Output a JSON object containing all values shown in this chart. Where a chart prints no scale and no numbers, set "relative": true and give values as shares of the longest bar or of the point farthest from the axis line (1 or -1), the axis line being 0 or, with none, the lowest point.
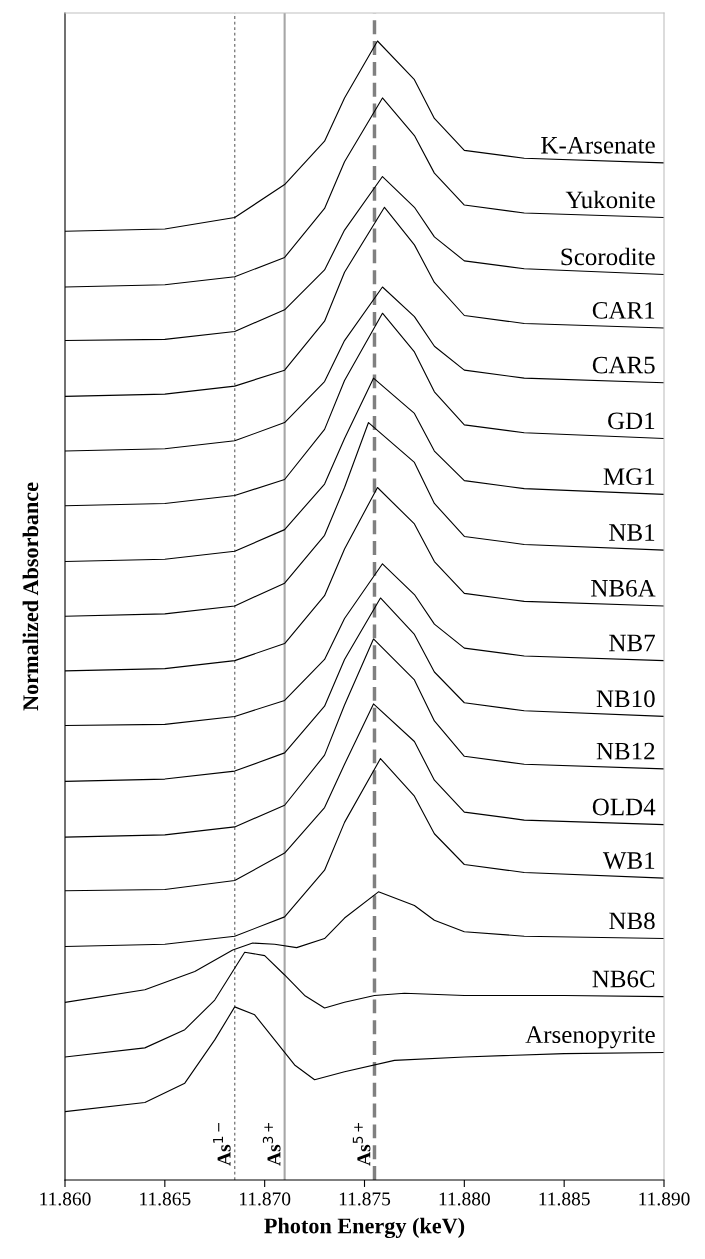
{
  "chart_data": {
    "type": "line",
    "relative": true,
    "xlabel": "Photon Energy (keV)",
    "ylabel": "Normalized Absorbance",
    "xlim": [
      11.86,
      11.89
    ],
    "xticks": [
      {
        "value": 11.86,
        "label": "11.860"
      },
      {
        "value": 11.865,
        "label": "11.865"
      },
      {
        "value": 11.87,
        "label": "11.870"
      },
      {
        "value": 11.875,
        "label": "11.875"
      },
      {
        "value": 11.88,
        "label": "11.880"
      },
      {
        "value": 11.885,
        "label": "11.885"
      },
      {
        "value": 11.89,
        "label": "11.890"
      }
    ],
    "tick_labels": "x",
    "grid": false,
    "legend": false,
    "marker": "none",
    "line_style": "solid",
    "ref_lines": [
      {
        "axis": "x",
        "value": 11.8685,
        "label": "As$^{1−}$",
        "color": "#808080",
        "line_style": "dotted"
      },
      {
        "axis": "x",
        "value": 11.871,
        "label": "As$^{3+}$",
        "color": "#a6a6a6",
        "line_style": "solid"
      },
      {
        "axis": "x",
        "value": 11.8755,
        "label": "As$^{5+}$",
        "color": "#808080",
        "line_style": "dashed"
      }
    ],
    "series": [
      {
        "name": "K-Arsenate",
        "color": "#000000",
        "x": [
          11.86,
          11.865,
          11.8685,
          11.871,
          11.873,
          11.874,
          11.87565,
          11.8775,
          11.8785,
          11.88,
          11.883,
          11.89
        ],
        "values": [
          0.833,
          0.835,
          0.845,
          0.874,
          0.912,
          0.95,
          1.0,
          0.966,
          0.932,
          0.904,
          0.897,
          0.893
        ]
      },
      {
        "name": "Yukonite",
        "color": "#000000",
        "x": [
          11.86,
          11.865,
          11.8685,
          11.871,
          11.873,
          11.874,
          11.8759,
          11.8775,
          11.8785,
          11.88,
          11.883,
          11.89
        ],
        "values": [
          0.784,
          0.786,
          0.793,
          0.81,
          0.853,
          0.894,
          0.95,
          0.917,
          0.884,
          0.856,
          0.849,
          0.845
        ]
      },
      {
        "name": "Scorodite",
        "color": "#000000",
        "x": [
          11.86,
          11.865,
          11.8685,
          11.871,
          11.873,
          11.874,
          11.8759,
          11.8775,
          11.8785,
          11.88,
          11.883,
          11.89
        ],
        "values": [
          0.737,
          0.738,
          0.745,
          0.764,
          0.799,
          0.834,
          0.881,
          0.854,
          0.828,
          0.807,
          0.8,
          0.795
        ]
      },
      {
        "name": "CAR1",
        "color": "#000000",
        "x": [
          11.86,
          11.865,
          11.8685,
          11.871,
          11.873,
          11.874,
          11.876,
          11.8775,
          11.8785,
          11.88,
          11.883,
          11.89
        ],
        "values": [
          0.688,
          0.69,
          0.697,
          0.711,
          0.754,
          0.797,
          0.854,
          0.821,
          0.788,
          0.759,
          0.752,
          0.748
        ]
      },
      {
        "name": "CAR5",
        "color": "#000000",
        "x": [
          11.86,
          11.865,
          11.8685,
          11.871,
          11.873,
          11.874,
          11.8759,
          11.8775,
          11.8785,
          11.88,
          11.883,
          11.89
        ],
        "values": [
          0.64,
          0.642,
          0.649,
          0.665,
          0.701,
          0.737,
          0.784,
          0.758,
          0.732,
          0.711,
          0.704,
          0.7
        ]
      },
      {
        "name": "GD1",
        "color": "#000000",
        "x": [
          11.86,
          11.865,
          11.8685,
          11.871,
          11.873,
          11.874,
          11.8759,
          11.8775,
          11.8785,
          11.88,
          11.883,
          11.89
        ],
        "values": [
          0.592,
          0.594,
          0.601,
          0.615,
          0.659,
          0.702,
          0.761,
          0.727,
          0.692,
          0.663,
          0.656,
          0.651
        ]
      },
      {
        "name": "MG1",
        "color": "#000000",
        "x": [
          11.86,
          11.865,
          11.8685,
          11.871,
          11.873,
          11.874,
          11.87545,
          11.8775,
          11.8785,
          11.88,
          11.883,
          11.89
        ],
        "values": [
          0.543,
          0.545,
          0.552,
          0.571,
          0.611,
          0.651,
          0.704,
          0.673,
          0.64,
          0.614,
          0.607,
          0.602
        ]
      },
      {
        "name": "NB1",
        "color": "#000000",
        "x": [
          11.86,
          11.865,
          11.8685,
          11.871,
          11.873,
          11.874,
          11.8752,
          11.8775,
          11.8785,
          11.88,
          11.883,
          11.89
        ],
        "values": [
          0.495,
          0.497,
          0.504,
          0.524,
          0.566,
          0.608,
          0.665,
          0.63,
          0.594,
          0.565,
          0.558,
          0.553
        ]
      },
      {
        "name": "NB6A",
        "color": "#000000",
        "x": [
          11.86,
          11.865,
          11.8685,
          11.871,
          11.873,
          11.874,
          11.87565,
          11.8775,
          11.8785,
          11.88,
          11.883,
          11.89
        ],
        "values": [
          0.447,
          0.449,
          0.456,
          0.471,
          0.513,
          0.554,
          0.608,
          0.576,
          0.543,
          0.515,
          0.508,
          0.504
        ]
      },
      {
        "name": "NB7",
        "color": "#000000",
        "x": [
          11.86,
          11.865,
          11.8685,
          11.871,
          11.873,
          11.874,
          11.8759,
          11.8775,
          11.8785,
          11.88,
          11.883,
          11.89
        ],
        "values": [
          0.399,
          0.4,
          0.407,
          0.421,
          0.457,
          0.493,
          0.541,
          0.514,
          0.488,
          0.467,
          0.46,
          0.456
        ]
      },
      {
        "name": "NB10",
        "color": "#000000",
        "x": [
          11.86,
          11.865,
          11.8685,
          11.871,
          11.873,
          11.874,
          11.8758,
          11.8775,
          11.8785,
          11.88,
          11.883,
          11.89
        ],
        "values": [
          0.35,
          0.352,
          0.359,
          0.375,
          0.416,
          0.457,
          0.511,
          0.479,
          0.446,
          0.419,
          0.412,
          0.407
        ]
      },
      {
        "name": "NB12",
        "color": "#000000",
        "x": [
          11.86,
          11.865,
          11.8685,
          11.871,
          11.873,
          11.874,
          11.87545,
          11.8775,
          11.8785,
          11.88,
          11.883,
          11.89
        ],
        "values": [
          0.301,
          0.303,
          0.31,
          0.329,
          0.373,
          0.417,
          0.475,
          0.439,
          0.403,
          0.372,
          0.365,
          0.361
        ]
      },
      {
        "name": "OLD4",
        "color": "#000000",
        "x": [
          11.86,
          11.865,
          11.8685,
          11.871,
          11.873,
          11.874,
          11.87545,
          11.8775,
          11.8785,
          11.88,
          11.883,
          11.89
        ],
        "values": [
          0.254,
          0.255,
          0.263,
          0.287,
          0.327,
          0.365,
          0.418,
          0.385,
          0.351,
          0.323,
          0.316,
          0.312
        ]
      },
      {
        "name": "WB1",
        "color": "#000000",
        "x": [
          11.86,
          11.865,
          11.8685,
          11.871,
          11.873,
          11.874,
          11.8758,
          11.8775,
          11.8785,
          11.88,
          11.883,
          11.89
        ],
        "values": [
          0.205,
          0.207,
          0.214,
          0.231,
          0.272,
          0.314,
          0.37,
          0.337,
          0.304,
          0.277,
          0.27,
          0.265
        ]
      },
      {
        "name": "NB8",
        "color": "#000000",
        "x": [
          11.86,
          11.864,
          11.8665,
          11.8684,
          11.8694,
          11.8705,
          11.8716,
          11.873,
          11.874,
          11.8757,
          11.8775,
          11.8785,
          11.88,
          11.883,
          11.89
        ],
        "values": [
          0.156,
          0.167,
          0.183,
          0.202,
          0.208,
          0.207,
          0.204,
          0.212,
          0.23,
          0.253,
          0.241,
          0.228,
          0.218,
          0.214,
          0.212
        ]
      },
      {
        "name": "NB6C",
        "color": "#000000",
        "x": [
          11.86,
          11.864,
          11.866,
          11.8675,
          11.869,
          11.87,
          11.871,
          11.872,
          11.873,
          11.874,
          11.8755,
          11.877,
          11.88,
          11.885,
          11.89
        ],
        "values": [
          0.108,
          0.116,
          0.132,
          0.158,
          0.2,
          0.197,
          0.18,
          0.162,
          0.151,
          0.156,
          0.162,
          0.164,
          0.162,
          0.162,
          0.161
        ]
      },
      {
        "name": "Arsenopyrite",
        "color": "#000000",
        "x": [
          11.86,
          11.864,
          11.866,
          11.8675,
          11.8685,
          11.8695,
          11.8705,
          11.8715,
          11.8725,
          11.874,
          11.8765,
          11.88,
          11.885,
          11.89
        ],
        "values": [
          0.06,
          0.068,
          0.085,
          0.123,
          0.152,
          0.145,
          0.123,
          0.101,
          0.088,
          0.095,
          0.105,
          0.108,
          0.111,
          0.112
        ]
      }
    ]
  }
}
